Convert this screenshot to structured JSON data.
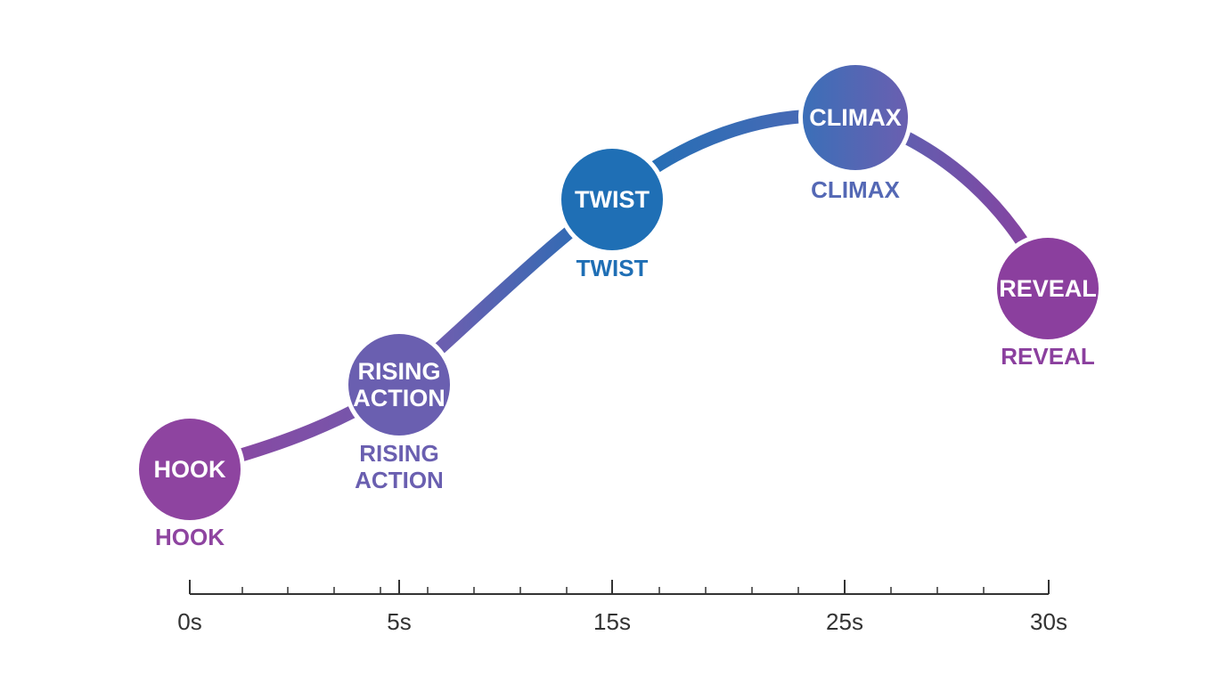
{
  "diagram": {
    "stages": [
      {
        "id": "hook",
        "node_text": [
          "HOOK"
        ],
        "label": [
          "HOOK"
        ],
        "color": "#8e44a0",
        "label_color": "#8e44a0"
      },
      {
        "id": "rising-action",
        "node_text": [
          "RISING",
          "ACTION"
        ],
        "label": [
          "RISING",
          "ACTION"
        ],
        "color": "#6a5fb0",
        "label_color": "#6a5fb0"
      },
      {
        "id": "twist",
        "node_text": [
          "TWIST"
        ],
        "label": [
          "TWIST"
        ],
        "color": "#1f6fb5",
        "label_color": "#1f6fb5"
      },
      {
        "id": "climax",
        "node_text": [
          "CLIMAX"
        ],
        "label": [
          "CLIMAX"
        ],
        "color": "#5468b5",
        "label_color": "#5468b5"
      },
      {
        "id": "reveal",
        "node_text": [
          "REVEAL"
        ],
        "label": [
          "REVEAL"
        ],
        "color": "#8b3f9e",
        "label_color": "#8b3f9e"
      }
    ],
    "timeline": {
      "tick_labels": [
        "0s",
        "5s",
        "15s",
        "25s",
        "30s"
      ]
    },
    "colors": {
      "purple": "#8e44a0",
      "violet": "#6a5fb0",
      "blue": "#1f6fb5",
      "axis": "#333333"
    }
  }
}
